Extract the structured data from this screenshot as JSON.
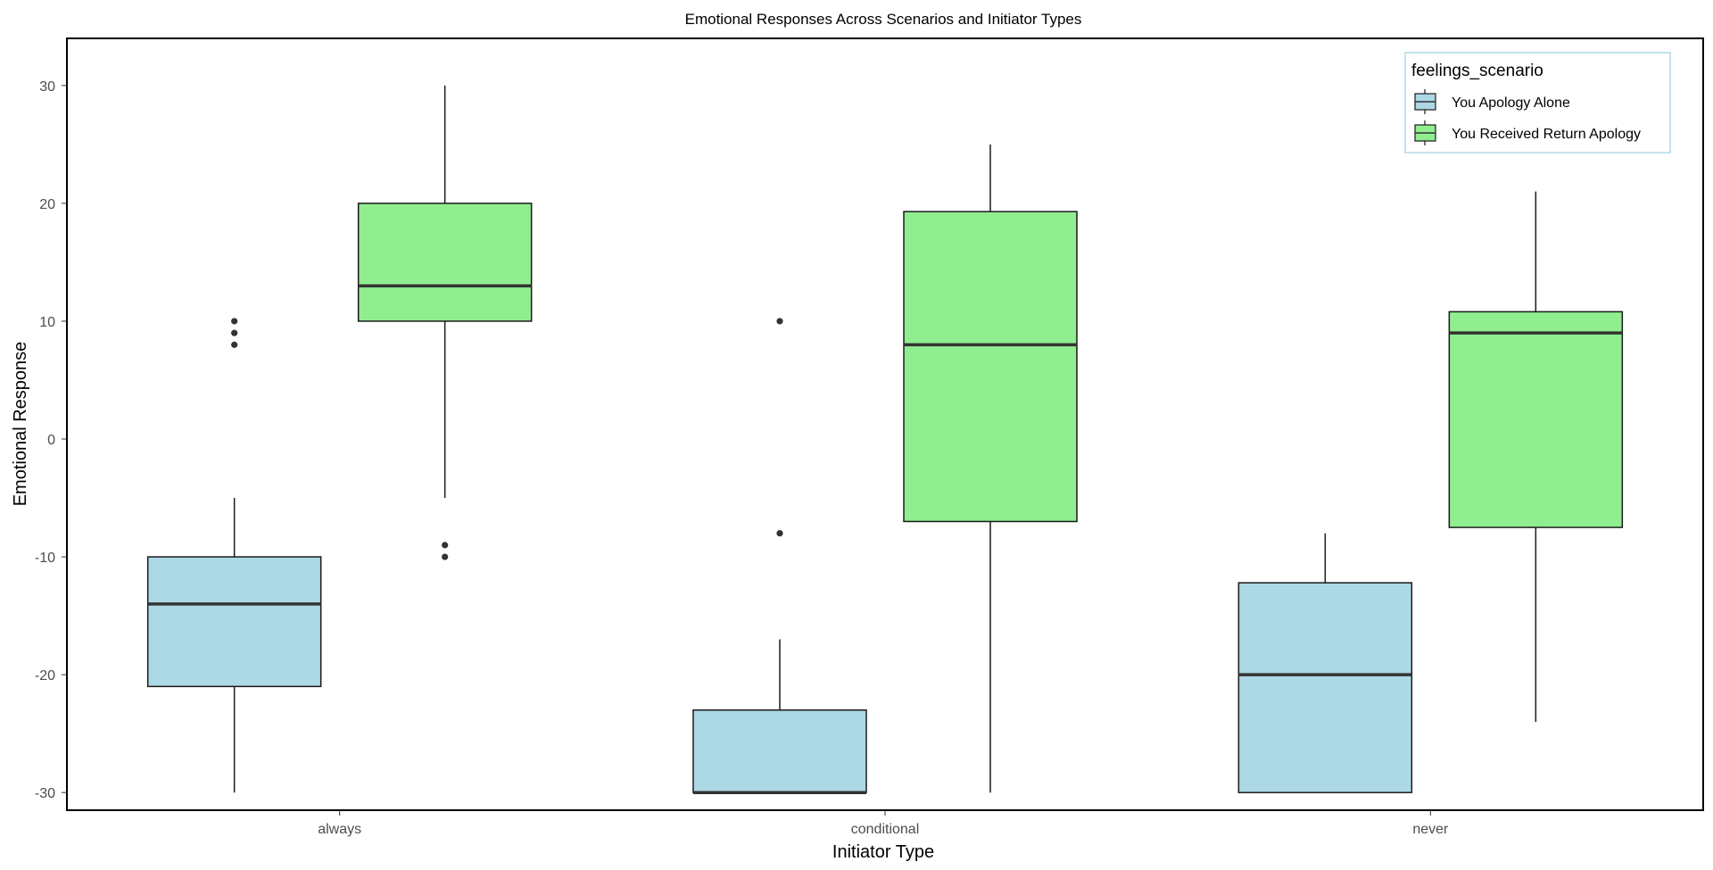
{
  "chart_data": {
    "type": "boxplot",
    "title": "Emotional Responses Across Scenarios and Initiator Types",
    "xlabel": "Initiator Type",
    "ylabel": "Emotional Response",
    "categories": [
      "always",
      "conditional",
      "never"
    ],
    "ylim": [
      -31.5,
      34
    ],
    "yticks": [
      30,
      20,
      10,
      0,
      -10,
      -20,
      -30
    ],
    "ytick_labels": [
      "30",
      "20",
      "10",
      "0",
      "-10",
      "-20",
      "-30"
    ],
    "grid": false,
    "legend": {
      "title": "feelings_scenario",
      "position": "top-right",
      "items": [
        "You Apology Alone",
        "You Received Return Apology"
      ]
    },
    "series": [
      {
        "name": "You Apology Alone",
        "color": "#ADD8E6",
        "boxes": [
          {
            "category": "always",
            "whisker_low": -30,
            "q1": -21,
            "median": -14,
            "q3": -10,
            "whisker_high": -5,
            "outliers": [
              8,
              9,
              10
            ]
          },
          {
            "category": "conditional",
            "whisker_low": -30,
            "q1": -30,
            "median": -30,
            "q3": -23,
            "whisker_high": -17,
            "outliers": [
              -8,
              10
            ]
          },
          {
            "category": "never",
            "whisker_low": -30,
            "q1": -30,
            "median": -20,
            "q3": -12.2,
            "whisker_high": -8,
            "outliers": []
          }
        ]
      },
      {
        "name": "You Received Return Apology",
        "color": "#90EE90",
        "boxes": [
          {
            "category": "always",
            "whisker_low": -5,
            "q1": 10,
            "median": 13,
            "q3": 20,
            "whisker_high": 30,
            "outliers": [
              -9,
              -10
            ]
          },
          {
            "category": "conditional",
            "whisker_low": -30,
            "q1": -7,
            "median": 8,
            "q3": 19.3,
            "whisker_high": 25,
            "outliers": []
          },
          {
            "category": "never",
            "whisker_low": -24,
            "q1": -7.5,
            "median": 9,
            "q3": 10.8,
            "whisker_high": 21,
            "outliers": []
          }
        ]
      }
    ]
  }
}
